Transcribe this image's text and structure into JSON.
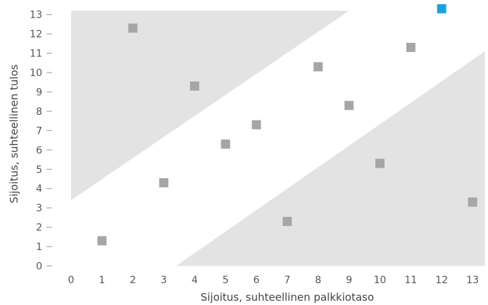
{
  "chart_data": {
    "type": "scatter",
    "title": "",
    "xlabel": "Sijoitus, suhteellinen palkkiotaso",
    "ylabel": "Sijoitus, suhteellinen tulos",
    "xlim": [
      0,
      13
    ],
    "ylim": [
      0,
      13
    ],
    "x_ticks": [
      "0",
      "1",
      "2",
      "3",
      "4",
      "5",
      "6",
      "7",
      "8",
      "9",
      "10",
      "11",
      "12",
      "13"
    ],
    "y_ticks": [
      "0",
      "1",
      "2",
      "3",
      "4",
      "5",
      "6",
      "7",
      "8",
      "9",
      "10",
      "11",
      "12",
      "13"
    ],
    "grid": false,
    "legend": "none",
    "bands": [
      {
        "name": "upper-band",
        "polygon": [
          [
            0,
            3.4
          ],
          [
            0,
            13.2
          ],
          [
            9,
            13.2
          ]
        ],
        "color": "#e3e3e3"
      },
      {
        "name": "lower-band",
        "polygon": [
          [
            3.4,
            0
          ],
          [
            13.4,
            0
          ],
          [
            13.4,
            11.1
          ]
        ],
        "color": "#e3e3e3"
      }
    ],
    "points": [
      {
        "x": 1,
        "y": 1.3,
        "color": "#a6a6a6"
      },
      {
        "x": 2,
        "y": 12.3,
        "color": "#a6a6a6"
      },
      {
        "x": 3,
        "y": 4.3,
        "color": "#a6a6a6"
      },
      {
        "x": 4,
        "y": 9.3,
        "color": "#a6a6a6"
      },
      {
        "x": 5,
        "y": 6.3,
        "color": "#a6a6a6"
      },
      {
        "x": 6,
        "y": 7.3,
        "color": "#a6a6a6"
      },
      {
        "x": 7,
        "y": 2.3,
        "color": "#a6a6a6"
      },
      {
        "x": 8,
        "y": 10.3,
        "color": "#a6a6a6"
      },
      {
        "x": 9,
        "y": 8.3,
        "color": "#a6a6a6"
      },
      {
        "x": 10,
        "y": 5.3,
        "color": "#a6a6a6"
      },
      {
        "x": 11,
        "y": 11.3,
        "color": "#a6a6a6"
      },
      {
        "x": 12,
        "y": 13.3,
        "color": "#1aa3de"
      },
      {
        "x": 13,
        "y": 3.3,
        "color": "#a6a6a6"
      }
    ],
    "colors": {
      "band": "#e3e3e3",
      "point": "#a6a6a6",
      "highlight": "#1aa3de",
      "tick_mark": "#9a9a9a"
    }
  }
}
